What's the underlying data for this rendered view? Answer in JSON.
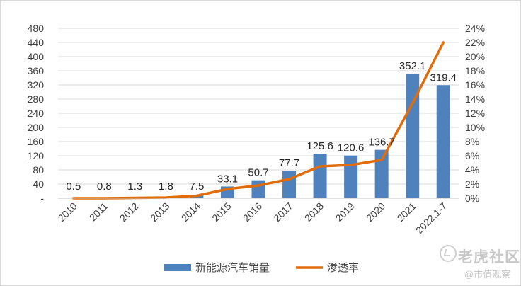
{
  "chart_data": {
    "type": "bar",
    "categories": [
      "2010",
      "2011",
      "2012",
      "2013",
      "2014",
      "2015",
      "2016",
      "2017",
      "2018",
      "2019",
      "2020",
      "2021",
      "2022.1-7"
    ],
    "series": [
      {
        "name": "新能源汽车销量",
        "type": "bar",
        "axis": "left",
        "color": "#4f81bd",
        "values": [
          0.5,
          0.8,
          1.3,
          1.8,
          7.5,
          33.1,
          50.7,
          77.7,
          125.6,
          120.6,
          136.7,
          352.1,
          319.4
        ],
        "data_labels": [
          "0.5",
          "0.8",
          "1.3",
          "1.8",
          "7.5",
          "33.1",
          "50.7",
          "77.7",
          "125.6",
          "120.6",
          "136.7",
          "352.1",
          "319.4"
        ]
      },
      {
        "name": "渗透率",
        "type": "line",
        "axis": "right",
        "color": "#e36c0a",
        "values": [
          0.0,
          0.0,
          0.05,
          0.1,
          0.35,
          1.3,
          1.8,
          2.7,
          4.5,
          4.7,
          5.4,
          13.4,
          22.0
        ]
      }
    ],
    "left_axis": {
      "ylim": [
        0,
        480
      ],
      "ticks": [
        "-",
        "40",
        "80",
        "120",
        "160",
        "200",
        "240",
        "280",
        "320",
        "360",
        "400",
        "440",
        "480"
      ]
    },
    "right_axis": {
      "ylim": [
        0,
        24
      ],
      "ticks": [
        "0%",
        "2%",
        "4%",
        "6%",
        "8%",
        "10%",
        "12%",
        "14%",
        "16%",
        "18%",
        "20%",
        "22%",
        "24%"
      ]
    },
    "grid": true,
    "legend_position": "bottom"
  },
  "watermark": {
    "brand": "老虎社区",
    "author": "@市值观察"
  }
}
